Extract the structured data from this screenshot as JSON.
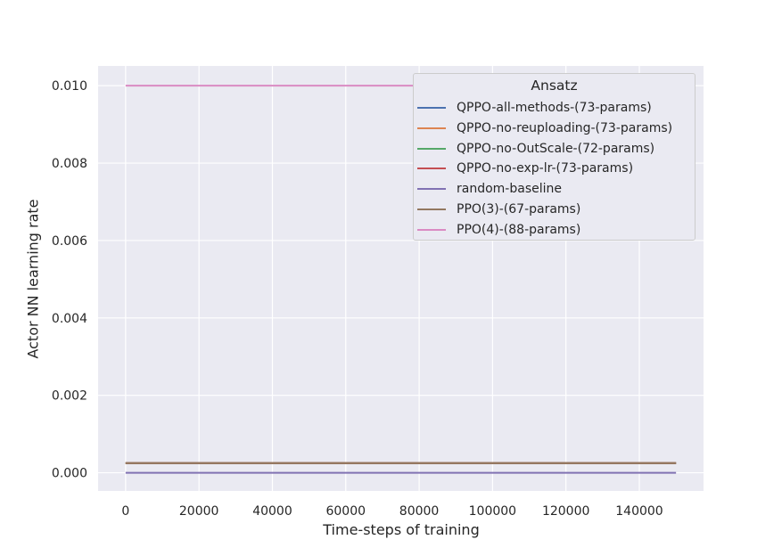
{
  "chart_data": {
    "type": "line",
    "title": "",
    "xlabel": "Time-steps of training",
    "ylabel": "Actor NN learning rate",
    "xlim": [
      -7500,
      157500
    ],
    "ylim": [
      -0.00047,
      0.01051
    ],
    "xticks": [
      0,
      20000,
      40000,
      60000,
      80000,
      100000,
      120000,
      140000
    ],
    "xtick_labels": [
      "0",
      "20000",
      "40000",
      "60000",
      "80000",
      "100000",
      "120000",
      "140000"
    ],
    "yticks": [
      0.0,
      0.002,
      0.004,
      0.006,
      0.008,
      0.01
    ],
    "ytick_labels": [
      "0.000",
      "0.002",
      "0.004",
      "0.006",
      "0.008",
      "0.010"
    ],
    "grid": true,
    "legend": {
      "title": "Ansatz",
      "placement": "top-right"
    },
    "series": [
      {
        "name": "QPPO-all-methods-(73-params)",
        "color": "#4c72b0",
        "x": [
          0,
          150000
        ],
        "values": [
          0.00025,
          0.00025
        ]
      },
      {
        "name": "QPPO-no-reuploading-(73-params)",
        "color": "#dd8452",
        "x": [
          0,
          150000
        ],
        "values": [
          0.00025,
          0.00025
        ]
      },
      {
        "name": "QPPO-no-OutScale-(72-params)",
        "color": "#55a868",
        "x": [
          0,
          150000
        ],
        "values": [
          0.00025,
          0.00025
        ]
      },
      {
        "name": "QPPO-no-exp-lr-(73-params)",
        "color": "#c44e52",
        "x": [
          0,
          150000
        ],
        "values": [
          0.00025,
          0.00025
        ]
      },
      {
        "name": "random-baseline",
        "color": "#8172b3",
        "x": [
          0,
          150000
        ],
        "values": [
          0.0,
          0.0
        ]
      },
      {
        "name": "PPO(3)-(67-params)",
        "color": "#937860",
        "x": [
          0,
          150000
        ],
        "values": [
          0.00025,
          0.00025
        ]
      },
      {
        "name": "PPO(4)-(88-params)",
        "color": "#da8bc3",
        "x": [
          0,
          150000
        ],
        "values": [
          0.01,
          0.01
        ]
      }
    ]
  }
}
